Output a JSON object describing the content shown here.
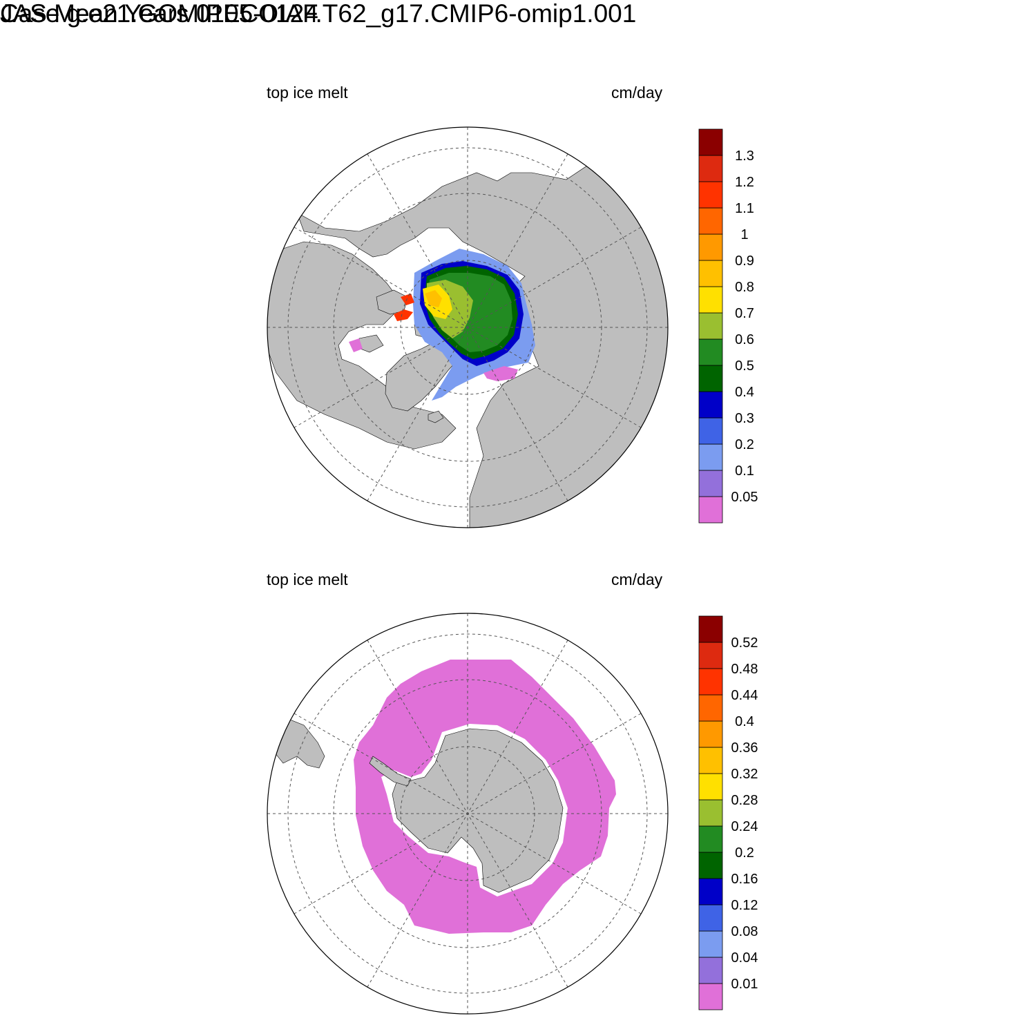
{
  "title": {
    "line1": "Case g.e21.GOMIPECOIAF.T62_g17.CMIP6-omip1.001",
    "line2": "JAS Mean   Years 0105-0124"
  },
  "panels": [
    {
      "hemisphere": "north",
      "left_label": "top ice melt",
      "right_label": "cm/day",
      "colorbar": {
        "colors": [
          "#e070d8",
          "#9370db",
          "#7b9cf0",
          "#3f63e6",
          "#0000c8",
          "#006400",
          "#228b22",
          "#9abf30",
          "#ffe000",
          "#ffc000",
          "#ff9900",
          "#ff6600",
          "#ff3300",
          "#dd2a10",
          "#8b0000"
        ],
        "labels": [
          "0.05",
          "0.1",
          "0.2",
          "0.3",
          "0.4",
          "0.5",
          "0.6",
          "0.7",
          "0.8",
          "0.9",
          "1",
          "1.1",
          "1.2",
          "1.3"
        ]
      }
    },
    {
      "hemisphere": "south",
      "left_label": "top ice melt",
      "right_label": "cm/day",
      "colorbar": {
        "colors": [
          "#e070d8",
          "#9370db",
          "#7b9cf0",
          "#3f63e6",
          "#0000c8",
          "#006400",
          "#228b22",
          "#9abf30",
          "#ffe000",
          "#ffc000",
          "#ff9900",
          "#ff6600",
          "#ff3300",
          "#dd2a10",
          "#8b0000"
        ],
        "labels": [
          "0.01",
          "0.04",
          "0.08",
          "0.12",
          "0.16",
          "0.2",
          "0.24",
          "0.28",
          "0.32",
          "0.36",
          "0.4",
          "0.44",
          "0.48",
          "0.52"
        ]
      }
    }
  ],
  "colors": {
    "land": "#bebebe",
    "ocean": "#ffffff",
    "ice_low": "#e070d8"
  }
}
